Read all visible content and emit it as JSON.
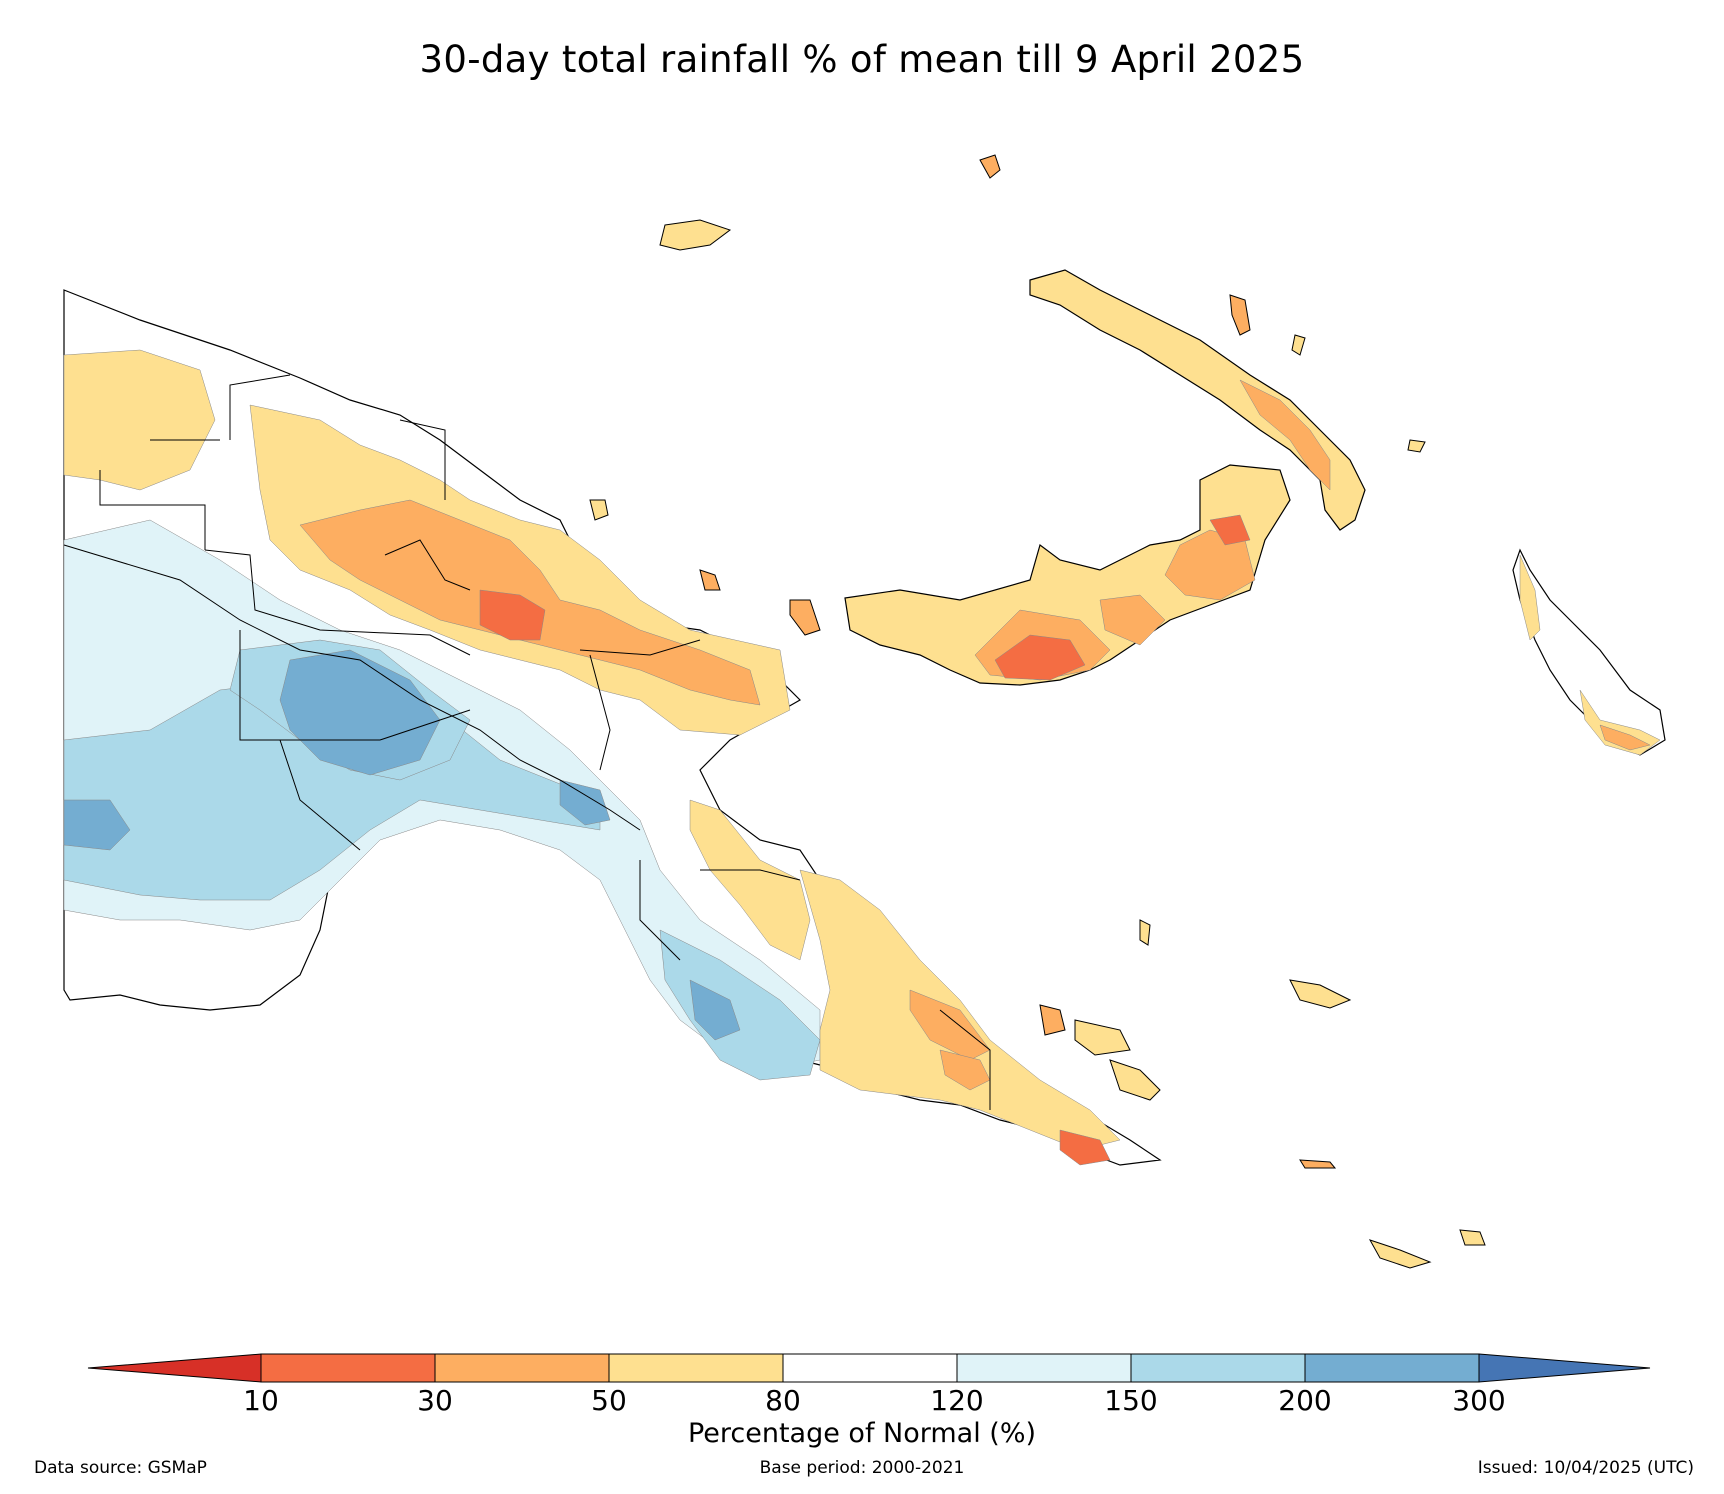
{
  "map": {
    "title": "30-day total rainfall % of mean till 9 April 2025"
  },
  "legend": {
    "label": "Percentage of Normal (%)",
    "ticks": [
      "10",
      "30",
      "50",
      "80",
      "120",
      "150",
      "200",
      "300"
    ],
    "classes": [
      {
        "range": "<10",
        "color": "#d73027"
      },
      {
        "range": "10-30",
        "color": "#f46d43"
      },
      {
        "range": "30-50",
        "color": "#fdae61"
      },
      {
        "range": "50-80",
        "color": "#fee090"
      },
      {
        "range": "80-120",
        "color": "#ffffff"
      },
      {
        "range": "120-150",
        "color": "#e0f3f8"
      },
      {
        "range": "150-200",
        "color": "#abd9e9"
      },
      {
        "range": "200-300",
        "color": "#74add1"
      },
      {
        "range": ">300",
        "color": "#4575b4"
      }
    ]
  },
  "footer": {
    "data_source": "Data source: GSMaP",
    "base_period": "Base period: 2000-2021",
    "issued": "Issued: 10/04/2025 (UTC)"
  }
}
